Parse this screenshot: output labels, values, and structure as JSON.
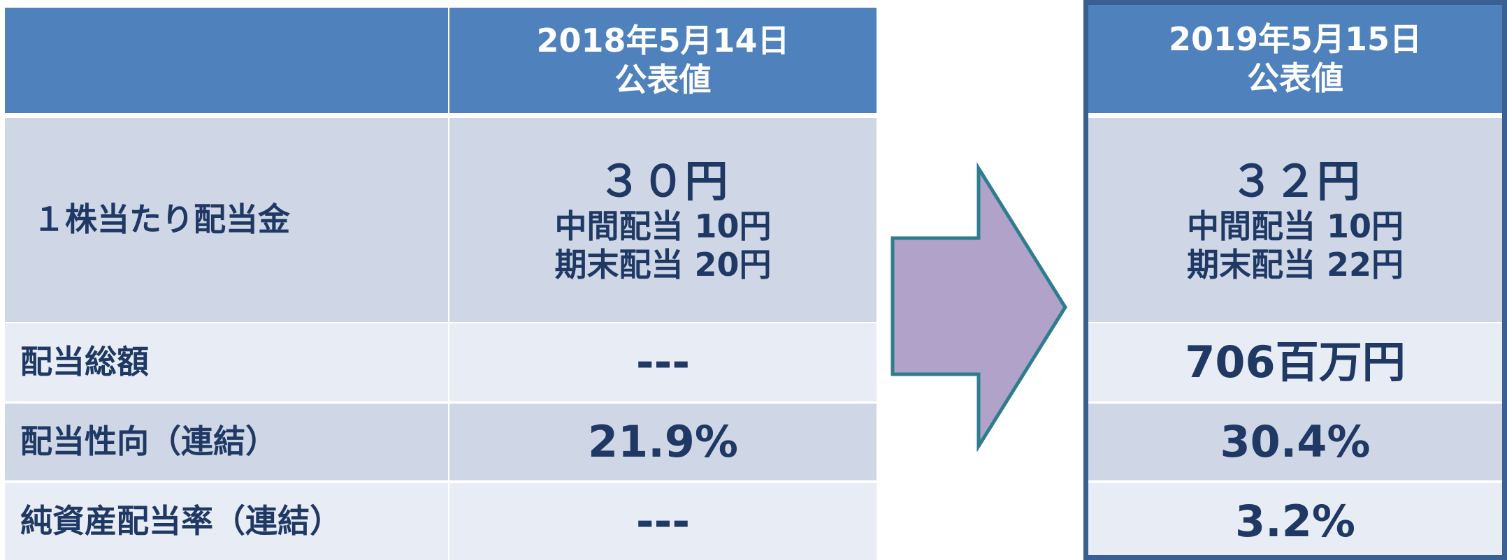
{
  "before_header": {
    "date": "2018年5月14日",
    "label": "公表値"
  },
  "after_header": {
    "date": "2019年5月15日",
    "label": "公表値"
  },
  "rows": [
    {
      "label": "１株当たり配当金",
      "before": [
        "３０円",
        "中間配当 10円",
        "期末配当 20円"
      ],
      "after": [
        "３２円",
        "中間配当 10円",
        "期末配当 22円"
      ]
    },
    {
      "label": "配当総額",
      "before": [
        "---"
      ],
      "after": [
        "706百万円"
      ]
    },
    {
      "label": "配当性向（連結）",
      "before": [
        "21.9%"
      ],
      "after": [
        "30.4%"
      ]
    },
    {
      "label": "純資産配当率（連結）",
      "before": [
        "---"
      ],
      "after": [
        "3.2%"
      ]
    }
  ]
}
